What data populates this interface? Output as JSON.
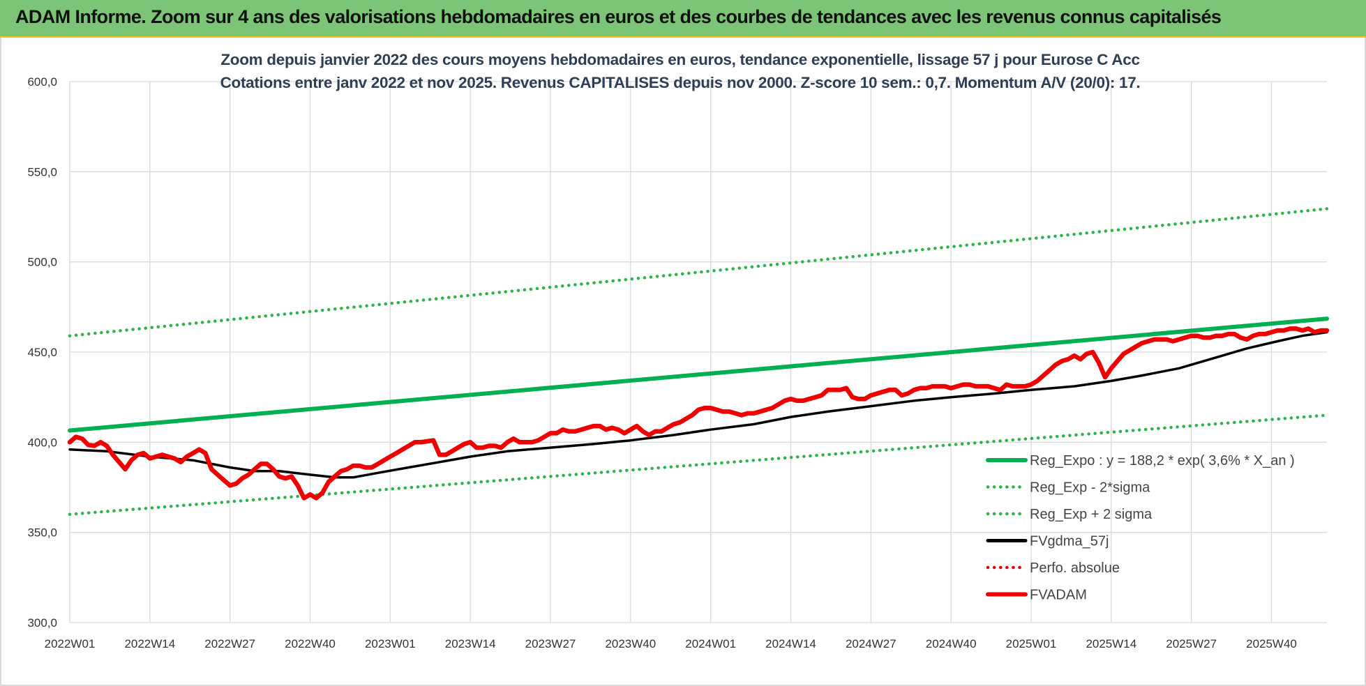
{
  "header": {
    "title": "ADAM Informe. Zoom sur 4 ans des valorisations hebdomadaires en euros et des courbes de tendances avec les revenus connus capitalisés"
  },
  "colors": {
    "banner": "#7cc576",
    "reg_expo": "#00b050",
    "sigma_bands": "#2db34a",
    "fvgdma": "#000000",
    "perfo": "#e00000",
    "fvadam": "#ee0000",
    "grid": "#d9d9d9"
  },
  "chart_data": {
    "type": "line",
    "title": "Zoom depuis janvier 2022 des cours moyens hebdomadaires en euros, tendance exponentielle, lissage 57 j pour Eurose C Acc",
    "subtitle": "Cotations entre janv 2022 et nov 2025. Revenus CAPITALISES depuis nov 2000. Z-score 10 sem.: 0,7. Momentum A/V (20/0): 17.",
    "xlabel": "",
    "ylabel": "",
    "ylim": [
      300,
      600
    ],
    "yticks": [
      "300,0",
      "350,0",
      "400,0",
      "450,0",
      "500,0",
      "550,0",
      "600,0"
    ],
    "x_ticks": [
      "2022W01",
      "2022W14",
      "2022W27",
      "2022W40",
      "2023W01",
      "2023W14",
      "2023W27",
      "2023W40",
      "2024W01",
      "2024W14",
      "2024W27",
      "2024W40",
      "2025W01",
      "2025W14",
      "2025W27",
      "2025W40"
    ],
    "week_count": 205,
    "grid": true,
    "legend_position": "lower-right",
    "series": [
      {
        "name": "Reg_Expo : y = 188,2 * exp( 3,6% *  X_an )",
        "style": "solid-thick",
        "color": "#00b050",
        "points": [
          [
            0,
            406.5
          ],
          [
            204,
            468.5
          ]
        ]
      },
      {
        "name": "Reg_Exp - 2*sigma",
        "style": "dotted",
        "color": "#2db34a",
        "points": [
          [
            0,
            360
          ],
          [
            204,
            415
          ]
        ]
      },
      {
        "name": "Reg_Exp + 2 sigma",
        "style": "dotted",
        "color": "#2db34a",
        "points": [
          [
            0,
            459
          ],
          [
            204,
            529.5
          ]
        ]
      },
      {
        "name": "FVgdma_57j",
        "style": "solid",
        "color": "#000000",
        "points": [
          [
            0,
            396
          ],
          [
            6,
            395
          ],
          [
            13,
            392
          ],
          [
            20,
            390
          ],
          [
            26,
            386
          ],
          [
            30,
            384
          ],
          [
            34,
            384
          ],
          [
            39,
            382
          ],
          [
            43,
            380.5
          ],
          [
            46,
            380.5
          ],
          [
            50,
            383
          ],
          [
            55,
            386
          ],
          [
            60,
            389
          ],
          [
            65,
            392
          ],
          [
            71,
            395
          ],
          [
            78,
            397
          ],
          [
            85,
            399
          ],
          [
            91,
            401
          ],
          [
            98,
            404
          ],
          [
            104,
            407
          ],
          [
            111,
            410
          ],
          [
            117,
            414
          ],
          [
            123,
            417
          ],
          [
            130,
            420
          ],
          [
            137,
            423
          ],
          [
            143,
            425
          ],
          [
            150,
            427
          ],
          [
            156,
            429
          ],
          [
            163,
            431
          ],
          [
            169,
            434
          ],
          [
            174,
            437
          ],
          [
            180,
            441
          ],
          [
            186,
            447
          ],
          [
            191,
            452
          ],
          [
            196,
            456
          ],
          [
            200,
            459
          ],
          [
            204,
            461
          ]
        ]
      },
      {
        "name": "Perfo. absolue",
        "style": "dotted",
        "color": "#e00000",
        "points": []
      },
      {
        "name": "FVADAM",
        "style": "solid-thick",
        "color": "#ee0000",
        "points": [
          [
            0,
            400
          ],
          [
            1,
            403
          ],
          [
            2,
            402
          ],
          [
            3,
            398.5
          ],
          [
            4,
            398
          ],
          [
            5,
            400
          ],
          [
            6,
            398
          ],
          [
            7,
            393
          ],
          [
            8,
            389
          ],
          [
            9,
            385
          ],
          [
            10,
            390
          ],
          [
            11,
            393
          ],
          [
            12,
            394
          ],
          [
            13,
            391
          ],
          [
            14,
            392
          ],
          [
            15,
            393
          ],
          [
            16,
            392
          ],
          [
            17,
            391
          ],
          [
            18,
            389
          ],
          [
            19,
            392
          ],
          [
            20,
            394
          ],
          [
            21,
            396
          ],
          [
            22,
            394
          ],
          [
            23,
            385
          ],
          [
            24,
            382
          ],
          [
            25,
            379
          ],
          [
            26,
            376
          ],
          [
            27,
            377
          ],
          [
            28,
            380
          ],
          [
            29,
            382
          ],
          [
            30,
            385
          ],
          [
            31,
            388
          ],
          [
            32,
            388
          ],
          [
            33,
            385
          ],
          [
            34,
            381
          ],
          [
            35,
            380
          ],
          [
            36,
            381
          ],
          [
            37,
            376
          ],
          [
            38,
            369
          ],
          [
            39,
            371
          ],
          [
            40,
            369
          ],
          [
            41,
            372
          ],
          [
            42,
            378
          ],
          [
            43,
            381
          ],
          [
            44,
            384
          ],
          [
            45,
            385
          ],
          [
            46,
            387
          ],
          [
            47,
            387
          ],
          [
            48,
            386
          ],
          [
            49,
            386
          ],
          [
            50,
            388
          ],
          [
            51,
            390
          ],
          [
            52,
            392
          ],
          [
            53,
            394
          ],
          [
            54,
            396
          ],
          [
            55,
            398
          ],
          [
            56,
            400
          ],
          [
            57,
            400
          ],
          [
            58,
            400.5
          ],
          [
            59,
            401
          ],
          [
            60,
            393
          ],
          [
            61,
            393
          ],
          [
            62,
            395
          ],
          [
            63,
            397
          ],
          [
            64,
            399
          ],
          [
            65,
            400
          ],
          [
            66,
            397
          ],
          [
            67,
            397
          ],
          [
            68,
            398
          ],
          [
            69,
            398
          ],
          [
            70,
            397
          ],
          [
            71,
            400
          ],
          [
            72,
            402
          ],
          [
            73,
            400
          ],
          [
            74,
            400
          ],
          [
            75,
            400
          ],
          [
            76,
            401
          ],
          [
            77,
            403
          ],
          [
            78,
            405
          ],
          [
            79,
            405
          ],
          [
            80,
            407
          ],
          [
            81,
            406
          ],
          [
            82,
            406
          ],
          [
            83,
            407
          ],
          [
            84,
            408
          ],
          [
            85,
            409
          ],
          [
            86,
            409
          ],
          [
            87,
            407
          ],
          [
            88,
            408
          ],
          [
            89,
            407
          ],
          [
            90,
            405
          ],
          [
            91,
            407
          ],
          [
            92,
            409
          ],
          [
            93,
            406
          ],
          [
            94,
            404
          ],
          [
            95,
            406
          ],
          [
            96,
            406
          ],
          [
            97,
            408
          ],
          [
            98,
            410
          ],
          [
            99,
            411
          ],
          [
            100,
            413
          ],
          [
            101,
            415
          ],
          [
            102,
            418
          ],
          [
            103,
            419
          ],
          [
            104,
            419
          ],
          [
            105,
            418
          ],
          [
            106,
            417
          ],
          [
            107,
            417
          ],
          [
            108,
            416
          ],
          [
            109,
            415
          ],
          [
            110,
            416
          ],
          [
            111,
            416
          ],
          [
            112,
            417
          ],
          [
            113,
            418
          ],
          [
            114,
            419
          ],
          [
            115,
            421
          ],
          [
            116,
            423
          ],
          [
            117,
            424
          ],
          [
            118,
            423
          ],
          [
            119,
            423
          ],
          [
            120,
            424
          ],
          [
            121,
            425
          ],
          [
            122,
            426
          ],
          [
            123,
            429
          ],
          [
            124,
            429
          ],
          [
            125,
            429
          ],
          [
            126,
            430
          ],
          [
            127,
            425
          ],
          [
            128,
            424
          ],
          [
            129,
            424
          ],
          [
            130,
            426
          ],
          [
            131,
            427
          ],
          [
            132,
            428
          ],
          [
            133,
            429
          ],
          [
            134,
            429
          ],
          [
            135,
            426
          ],
          [
            136,
            427
          ],
          [
            137,
            429
          ],
          [
            138,
            430
          ],
          [
            139,
            430
          ],
          [
            140,
            431
          ],
          [
            141,
            431
          ],
          [
            142,
            431
          ],
          [
            143,
            430
          ],
          [
            144,
            431
          ],
          [
            145,
            432
          ],
          [
            146,
            432
          ],
          [
            147,
            431
          ],
          [
            148,
            431
          ],
          [
            149,
            431
          ],
          [
            150,
            430
          ],
          [
            151,
            429
          ],
          [
            152,
            432
          ],
          [
            153,
            431
          ],
          [
            154,
            431
          ],
          [
            155,
            431
          ],
          [
            156,
            432
          ],
          [
            157,
            434
          ],
          [
            158,
            437
          ],
          [
            159,
            440
          ],
          [
            160,
            443
          ],
          [
            161,
            445
          ],
          [
            162,
            446
          ],
          [
            163,
            448
          ],
          [
            164,
            446
          ],
          [
            165,
            449
          ],
          [
            166,
            450
          ],
          [
            167,
            444
          ],
          [
            168,
            436
          ],
          [
            169,
            441
          ],
          [
            170,
            445
          ],
          [
            171,
            449
          ],
          [
            172,
            451
          ],
          [
            173,
            453
          ],
          [
            174,
            455
          ],
          [
            175,
            456
          ],
          [
            176,
            457
          ],
          [
            177,
            457
          ],
          [
            178,
            457
          ],
          [
            179,
            456
          ],
          [
            180,
            457
          ],
          [
            181,
            458
          ],
          [
            182,
            459
          ],
          [
            183,
            459
          ],
          [
            184,
            458
          ],
          [
            185,
            458
          ],
          [
            186,
            459
          ],
          [
            187,
            459
          ],
          [
            188,
            460
          ],
          [
            189,
            460
          ],
          [
            190,
            458
          ],
          [
            191,
            457
          ],
          [
            192,
            459
          ],
          [
            193,
            460
          ],
          [
            194,
            460
          ],
          [
            195,
            461
          ],
          [
            196,
            462
          ],
          [
            197,
            462
          ],
          [
            198,
            463
          ],
          [
            199,
            463
          ],
          [
            200,
            462
          ],
          [
            201,
            463
          ],
          [
            202,
            461
          ],
          [
            203,
            462
          ],
          [
            204,
            462
          ]
        ]
      }
    ]
  }
}
